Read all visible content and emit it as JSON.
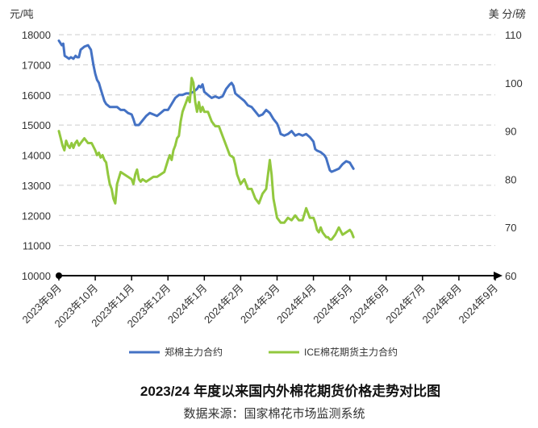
{
  "chart_data": {
    "type": "line",
    "title": "2023/24 年度以来国内外棉花期货价格走势对比图",
    "source": "数据来源：国家棉花市场监测系统",
    "left_unit": "元/吨",
    "right_unit": "美 分/磅",
    "left_axis": {
      "min": 10000,
      "max": 18000,
      "step": 1000,
      "ticks": [
        "10000",
        "11000",
        "12000",
        "13000",
        "14000",
        "15000",
        "16000",
        "17000",
        "18000"
      ]
    },
    "right_axis": {
      "min": 60,
      "max": 110,
      "step": 10,
      "ticks": [
        "60",
        "70",
        "80",
        "90",
        "100",
        "110"
      ]
    },
    "x_categories": [
      "2023年9月",
      "2023年10月",
      "2023年11月",
      "2023年12月",
      "2024年1月",
      "2024年2月",
      "2024年3月",
      "2024年4月",
      "2024年5月",
      "2024年6月",
      "2024年7月",
      "2024年8月",
      "2024年9月"
    ],
    "grid": "horizontal-dashed",
    "legend_position": "bottom",
    "colors": {
      "zce": "#4472c4",
      "ice": "#92c83e",
      "axis": "#000000",
      "grid": "#cccccc"
    },
    "series": [
      {
        "name": "郑棉主力合约",
        "axis": "left",
        "color": "#4472c4",
        "points": [
          [
            0.0,
            17800
          ],
          [
            0.08,
            17650
          ],
          [
            0.12,
            17700
          ],
          [
            0.16,
            17300
          ],
          [
            0.22,
            17250
          ],
          [
            0.28,
            17200
          ],
          [
            0.33,
            17250
          ],
          [
            0.4,
            17200
          ],
          [
            0.46,
            17300
          ],
          [
            0.5,
            17250
          ],
          [
            0.55,
            17250
          ],
          [
            0.6,
            17500
          ],
          [
            0.7,
            17600
          ],
          [
            0.8,
            17650
          ],
          [
            0.88,
            17500
          ],
          [
            0.95,
            17000
          ],
          [
            1.0,
            16700
          ],
          [
            1.05,
            16500
          ],
          [
            1.1,
            16400
          ],
          [
            1.15,
            16200
          ],
          [
            1.2,
            16000
          ],
          [
            1.25,
            15800
          ],
          [
            1.3,
            15700
          ],
          [
            1.4,
            15600
          ],
          [
            1.5,
            15600
          ],
          [
            1.6,
            15600
          ],
          [
            1.7,
            15500
          ],
          [
            1.8,
            15500
          ],
          [
            1.9,
            15400
          ],
          [
            2.0,
            15350
          ],
          [
            2.05,
            15200
          ],
          [
            2.1,
            15000
          ],
          [
            2.2,
            15000
          ],
          [
            2.3,
            15150
          ],
          [
            2.4,
            15300
          ],
          [
            2.5,
            15400
          ],
          [
            2.6,
            15350
          ],
          [
            2.7,
            15300
          ],
          [
            2.8,
            15400
          ],
          [
            2.9,
            15500
          ],
          [
            3.0,
            15500
          ],
          [
            3.1,
            15700
          ],
          [
            3.2,
            15900
          ],
          [
            3.3,
            16000
          ],
          [
            3.4,
            16000
          ],
          [
            3.5,
            16050
          ],
          [
            3.6,
            16050
          ],
          [
            3.7,
            16100
          ],
          [
            3.8,
            16200
          ],
          [
            3.85,
            16300
          ],
          [
            3.9,
            16250
          ],
          [
            3.95,
            16350
          ],
          [
            4.0,
            16100
          ],
          [
            4.05,
            16050
          ],
          [
            4.1,
            16000
          ],
          [
            4.2,
            15900
          ],
          [
            4.3,
            15950
          ],
          [
            4.4,
            15900
          ],
          [
            4.5,
            15950
          ],
          [
            4.6,
            16200
          ],
          [
            4.7,
            16350
          ],
          [
            4.75,
            16400
          ],
          [
            4.8,
            16300
          ],
          [
            4.85,
            16050
          ],
          [
            4.9,
            16000
          ],
          [
            5.0,
            15900
          ],
          [
            5.1,
            15800
          ],
          [
            5.2,
            15650
          ],
          [
            5.3,
            15600
          ],
          [
            5.4,
            15450
          ],
          [
            5.5,
            15300
          ],
          [
            5.6,
            15350
          ],
          [
            5.7,
            15500
          ],
          [
            5.8,
            15400
          ],
          [
            5.9,
            15200
          ],
          [
            6.0,
            15050
          ],
          [
            6.05,
            14900
          ],
          [
            6.1,
            14700
          ],
          [
            6.2,
            14650
          ],
          [
            6.3,
            14700
          ],
          [
            6.4,
            14800
          ],
          [
            6.5,
            14650
          ],
          [
            6.6,
            14700
          ],
          [
            6.7,
            14650
          ],
          [
            6.8,
            14700
          ],
          [
            6.9,
            14600
          ],
          [
            7.0,
            14450
          ],
          [
            7.05,
            14200
          ],
          [
            7.1,
            14150
          ],
          [
            7.2,
            14100
          ],
          [
            7.3,
            14000
          ],
          [
            7.35,
            13900
          ],
          [
            7.4,
            13700
          ],
          [
            7.45,
            13500
          ],
          [
            7.5,
            13450
          ],
          [
            7.6,
            13500
          ],
          [
            7.7,
            13550
          ],
          [
            7.8,
            13700
          ],
          [
            7.9,
            13800
          ],
          [
            8.0,
            13750
          ],
          [
            8.05,
            13650
          ],
          [
            8.1,
            13550
          ]
        ]
      },
      {
        "name": "ICE棉花期货主力合约",
        "axis": "right",
        "color": "#92c83e",
        "points": [
          [
            0.0,
            90
          ],
          [
            0.05,
            88.5
          ],
          [
            0.1,
            87
          ],
          [
            0.15,
            86
          ],
          [
            0.2,
            88
          ],
          [
            0.25,
            87
          ],
          [
            0.3,
            86.5
          ],
          [
            0.35,
            87.5
          ],
          [
            0.4,
            86.5
          ],
          [
            0.45,
            87.5
          ],
          [
            0.5,
            88
          ],
          [
            0.55,
            87
          ],
          [
            0.6,
            87.5
          ],
          [
            0.7,
            88.5
          ],
          [
            0.8,
            87.5
          ],
          [
            0.9,
            87.5
          ],
          [
            1.0,
            86
          ],
          [
            1.05,
            85
          ],
          [
            1.1,
            85.5
          ],
          [
            1.15,
            84.5
          ],
          [
            1.2,
            85
          ],
          [
            1.25,
            84
          ],
          [
            1.3,
            83.5
          ],
          [
            1.35,
            81
          ],
          [
            1.4,
            79
          ],
          [
            1.45,
            78
          ],
          [
            1.5,
            76
          ],
          [
            1.55,
            75
          ],
          [
            1.6,
            79
          ],
          [
            1.7,
            81.5
          ],
          [
            1.8,
            81
          ],
          [
            1.9,
            80.5
          ],
          [
            2.0,
            80
          ],
          [
            2.05,
            79
          ],
          [
            2.1,
            81
          ],
          [
            2.15,
            82
          ],
          [
            2.2,
            80
          ],
          [
            2.25,
            79.5
          ],
          [
            2.3,
            80
          ],
          [
            2.4,
            79.5
          ],
          [
            2.5,
            80
          ],
          [
            2.6,
            80.5
          ],
          [
            2.7,
            80.5
          ],
          [
            2.8,
            81
          ],
          [
            2.9,
            81.5
          ],
          [
            3.0,
            84
          ],
          [
            3.05,
            85
          ],
          [
            3.1,
            84
          ],
          [
            3.15,
            86
          ],
          [
            3.2,
            87
          ],
          [
            3.25,
            88.5
          ],
          [
            3.3,
            89
          ],
          [
            3.35,
            92
          ],
          [
            3.4,
            94
          ],
          [
            3.45,
            95
          ],
          [
            3.5,
            96
          ],
          [
            3.55,
            97
          ],
          [
            3.6,
            96
          ],
          [
            3.65,
            101
          ],
          [
            3.7,
            100
          ],
          [
            3.75,
            96
          ],
          [
            3.8,
            94
          ],
          [
            3.85,
            96
          ],
          [
            3.9,
            94
          ],
          [
            3.95,
            95
          ],
          [
            4.0,
            94
          ],
          [
            4.1,
            94
          ],
          [
            4.2,
            92
          ],
          [
            4.3,
            91
          ],
          [
            4.4,
            91
          ],
          [
            4.5,
            89
          ],
          [
            4.6,
            87
          ],
          [
            4.7,
            85
          ],
          [
            4.8,
            84.5
          ],
          [
            4.85,
            83
          ],
          [
            4.9,
            81
          ],
          [
            5.0,
            79
          ],
          [
            5.1,
            80
          ],
          [
            5.2,
            78
          ],
          [
            5.3,
            78
          ],
          [
            5.4,
            76
          ],
          [
            5.5,
            75
          ],
          [
            5.6,
            77
          ],
          [
            5.7,
            78
          ],
          [
            5.8,
            84
          ],
          [
            5.85,
            81
          ],
          [
            5.9,
            76
          ],
          [
            6.0,
            72
          ],
          [
            6.1,
            71
          ],
          [
            6.2,
            71
          ],
          [
            6.3,
            72
          ],
          [
            6.4,
            71.5
          ],
          [
            6.5,
            72.5
          ],
          [
            6.6,
            71.5
          ],
          [
            6.7,
            71.5
          ],
          [
            6.8,
            74
          ],
          [
            6.9,
            72
          ],
          [
            7.0,
            72
          ],
          [
            7.05,
            71
          ],
          [
            7.1,
            69.5
          ],
          [
            7.15,
            69
          ],
          [
            7.2,
            70
          ],
          [
            7.25,
            69
          ],
          [
            7.3,
            68.5
          ],
          [
            7.35,
            68
          ],
          [
            7.4,
            68
          ],
          [
            7.45,
            67.5
          ],
          [
            7.5,
            67.5
          ],
          [
            7.6,
            68.5
          ],
          [
            7.7,
            70
          ],
          [
            7.8,
            68.5
          ],
          [
            7.9,
            69
          ],
          [
            8.0,
            69.5
          ],
          [
            8.05,
            69
          ],
          [
            8.1,
            68
          ]
        ]
      }
    ]
  }
}
